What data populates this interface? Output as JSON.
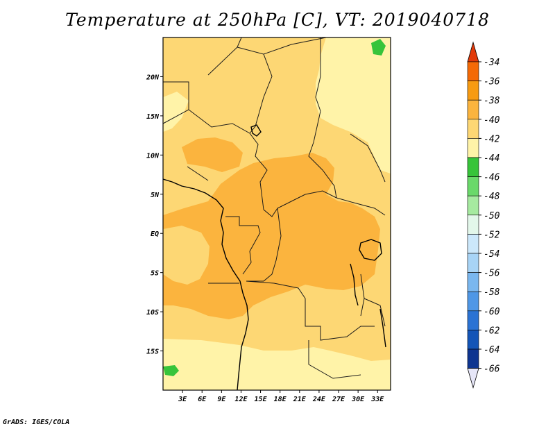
{
  "title": "Temperature at 250hPa [C], VT: 2019040718",
  "footer": "GrADS: IGES/COLA",
  "map": {
    "lon_range": [
      0,
      35
    ],
    "lat_range": [
      -20,
      25
    ],
    "lat_ticks": [
      {
        "value": 20,
        "label": "20N"
      },
      {
        "value": 15,
        "label": "15N"
      },
      {
        "value": 10,
        "label": "10N"
      },
      {
        "value": 5,
        "label": "5N"
      },
      {
        "value": 0,
        "label": "EQ"
      },
      {
        "value": -5,
        "label": "5S"
      },
      {
        "value": -10,
        "label": "10S"
      },
      {
        "value": -15,
        "label": "15S"
      }
    ],
    "lon_ticks": [
      {
        "value": 3,
        "label": "3E"
      },
      {
        "value": 6,
        "label": "6E"
      },
      {
        "value": 9,
        "label": "9E"
      },
      {
        "value": 12,
        "label": "12E"
      },
      {
        "value": 15,
        "label": "15E"
      },
      {
        "value": 18,
        "label": "18E"
      },
      {
        "value": 21,
        "label": "21E"
      },
      {
        "value": 24,
        "label": "24E"
      },
      {
        "value": 27,
        "label": "27E"
      },
      {
        "value": 30,
        "label": "30E"
      },
      {
        "value": 33,
        "label": "33E"
      }
    ]
  },
  "colorbar": {
    "labels": [
      "-34",
      "-36",
      "-38",
      "-40",
      "-42",
      "-44",
      "-46",
      "-48",
      "-50",
      "-52",
      "-54",
      "-56",
      "-58",
      "-60",
      "-62",
      "-64",
      "-66"
    ],
    "colors": [
      "#e23a0a",
      "#f46a06",
      "#f79b12",
      "#fbb43e",
      "#fdd774",
      "#fff3a8",
      "#37c43a",
      "#6ad96a",
      "#a6eaa0",
      "#e3f7ea",
      "#cce8fb",
      "#a8d4f6",
      "#7ab7ef",
      "#4f97e6",
      "#2b73d4",
      "#1455b7",
      "#0e3590",
      "#081a63",
      "#e6e6f8"
    ],
    "top_color": "#e23a0a",
    "bottom_color": "#e6e6f8"
  },
  "field_colors": {
    "c_minus42": "#fff3a8",
    "c_minus40": "#fdd774",
    "c_minus38": "#fbb43e",
    "c_minus44": "#37c43a"
  }
}
